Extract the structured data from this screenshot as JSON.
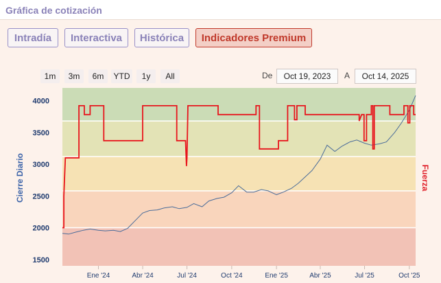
{
  "header": {
    "title": "Gráfica de cotización"
  },
  "tabs": [
    {
      "label": "Intradía",
      "active": false
    },
    {
      "label": "Interactiva",
      "active": false
    },
    {
      "label": "Histórica",
      "active": false
    },
    {
      "label": "Indicadores Premium",
      "active": true
    }
  ],
  "range_selector": {
    "buttons": [
      "1m",
      "3m",
      "6m",
      "YTD",
      "1y",
      "All"
    ],
    "from_label": "De",
    "from_value": "Oct 19, 2023",
    "to_label": "A",
    "to_value": "Oct 14, 2025"
  },
  "colors": {
    "panel_bg": "#fdf2eb",
    "accent": "#c0392b",
    "price_line": "#4a6c9a",
    "strength_line": "#e8141c",
    "zone_green": "#cbdcb6",
    "zone_yellow": "#f6e2b4",
    "zone_orange": "#f9d5bc",
    "zone_red": "#f2c2b6"
  },
  "chart_data": {
    "type": "line",
    "title": "",
    "ylabel": "Cierre Diario",
    "y2label": "Fuerza",
    "ylim": [
      1400,
      4200
    ],
    "yticks": [
      1500,
      2000,
      2500,
      3000,
      3500,
      4000
    ],
    "x_range": [
      "2023-10-19",
      "2025-10-14"
    ],
    "xticks": [
      {
        "label": "Ene '24",
        "date": "2024-01-01"
      },
      {
        "label": "Abr '24",
        "date": "2024-04-01"
      },
      {
        "label": "Jul '24",
        "date": "2024-07-01"
      },
      {
        "label": "Oct '24",
        "date": "2024-10-01"
      },
      {
        "label": "Ene '25",
        "date": "2025-01-01"
      },
      {
        "label": "Abr '25",
        "date": "2025-04-01"
      },
      {
        "label": "Jul '25",
        "date": "2025-07-01"
      },
      {
        "label": "Oct '25",
        "date": "2025-10-01"
      }
    ],
    "zones": [
      {
        "name": "verde",
        "from": 3680,
        "to": 4200,
        "color": "#cbdcb6"
      },
      {
        "name": "verde-amarillo",
        "from": 3120,
        "to": 3680,
        "color": "#e3e3b6"
      },
      {
        "name": "amarillo",
        "from": 2580,
        "to": 3120,
        "color": "#f6e2b4"
      },
      {
        "name": "naranja",
        "from": 2000,
        "to": 2580,
        "color": "#f9d5bc"
      },
      {
        "name": "rojo",
        "from": 1400,
        "to": 2000,
        "color": "#f2c2b6"
      }
    ],
    "series": [
      {
        "name": "Cierre Diario",
        "color": "#4a6c9a",
        "points": [
          [
            "2023-10-19",
            1910
          ],
          [
            "2023-11-01",
            1900
          ],
          [
            "2023-11-15",
            1930
          ],
          [
            "2023-12-01",
            1960
          ],
          [
            "2023-12-15",
            1980
          ],
          [
            "2024-01-01",
            1960
          ],
          [
            "2024-01-15",
            1950
          ],
          [
            "2024-02-01",
            1960
          ],
          [
            "2024-02-15",
            1940
          ],
          [
            "2024-03-01",
            1990
          ],
          [
            "2024-03-15",
            2100
          ],
          [
            "2024-04-01",
            2230
          ],
          [
            "2024-04-15",
            2270
          ],
          [
            "2024-05-01",
            2280
          ],
          [
            "2024-05-15",
            2310
          ],
          [
            "2024-06-01",
            2330
          ],
          [
            "2024-06-15",
            2300
          ],
          [
            "2024-07-01",
            2320
          ],
          [
            "2024-07-15",
            2380
          ],
          [
            "2024-08-01",
            2330
          ],
          [
            "2024-08-15",
            2420
          ],
          [
            "2024-09-01",
            2460
          ],
          [
            "2024-09-15",
            2480
          ],
          [
            "2024-10-01",
            2550
          ],
          [
            "2024-10-15",
            2660
          ],
          [
            "2024-11-01",
            2560
          ],
          [
            "2024-11-15",
            2560
          ],
          [
            "2024-12-01",
            2600
          ],
          [
            "2024-12-15",
            2580
          ],
          [
            "2025-01-01",
            2520
          ],
          [
            "2025-01-15",
            2560
          ],
          [
            "2025-02-01",
            2620
          ],
          [
            "2025-02-15",
            2700
          ],
          [
            "2025-03-01",
            2800
          ],
          [
            "2025-03-15",
            2900
          ],
          [
            "2025-04-01",
            3080
          ],
          [
            "2025-04-15",
            3300
          ],
          [
            "2025-05-01",
            3200
          ],
          [
            "2025-05-15",
            3280
          ],
          [
            "2025-06-01",
            3350
          ],
          [
            "2025-06-15",
            3380
          ],
          [
            "2025-07-01",
            3330
          ],
          [
            "2025-07-15",
            3300
          ],
          [
            "2025-08-01",
            3320
          ],
          [
            "2025-08-15",
            3350
          ],
          [
            "2025-09-01",
            3500
          ],
          [
            "2025-09-15",
            3650
          ],
          [
            "2025-10-01",
            3850
          ],
          [
            "2025-10-14",
            4080
          ]
        ]
      },
      {
        "name": "Fuerza",
        "color": "#e8141c",
        "points": [
          [
            "2023-10-19",
            2000
          ],
          [
            "2023-10-22",
            2000
          ],
          [
            "2023-10-22",
            2500
          ],
          [
            "2023-10-23",
            2700
          ],
          [
            "2023-10-25",
            3100
          ],
          [
            "2023-11-22",
            3100
          ],
          [
            "2023-11-22",
            3920
          ],
          [
            "2023-12-03",
            3920
          ],
          [
            "2023-12-03",
            3780
          ],
          [
            "2023-12-15",
            3780
          ],
          [
            "2023-12-15",
            3920
          ],
          [
            "2024-01-12",
            3920
          ],
          [
            "2024-01-12",
            3370
          ],
          [
            "2024-04-01",
            3370
          ],
          [
            "2024-04-01",
            3920
          ],
          [
            "2024-06-10",
            3920
          ],
          [
            "2024-06-10",
            3370
          ],
          [
            "2024-06-28",
            3370
          ],
          [
            "2024-06-30",
            2970
          ],
          [
            "2024-07-01",
            3100
          ],
          [
            "2024-07-03",
            3920
          ],
          [
            "2024-09-03",
            3920
          ],
          [
            "2024-09-03",
            3780
          ],
          [
            "2024-11-20",
            3780
          ],
          [
            "2024-11-20",
            3920
          ],
          [
            "2024-11-27",
            3920
          ],
          [
            "2024-11-27",
            3240
          ],
          [
            "2025-01-05",
            3240
          ],
          [
            "2025-01-05",
            3370
          ],
          [
            "2025-01-24",
            3370
          ],
          [
            "2025-01-24",
            3920
          ],
          [
            "2025-02-07",
            3920
          ],
          [
            "2025-02-07",
            3700
          ],
          [
            "2025-02-12",
            3700
          ],
          [
            "2025-02-12",
            3920
          ],
          [
            "2025-03-01",
            3920
          ],
          [
            "2025-03-01",
            3780
          ],
          [
            "2025-06-20",
            3780
          ],
          [
            "2025-06-20",
            3680
          ],
          [
            "2025-06-25",
            3780
          ],
          [
            "2025-06-30",
            3780
          ],
          [
            "2025-06-30",
            3370
          ],
          [
            "2025-07-05",
            3370
          ],
          [
            "2025-07-05",
            3780
          ],
          [
            "2025-07-15",
            3780
          ],
          [
            "2025-07-15",
            3920
          ],
          [
            "2025-07-18",
            3920
          ],
          [
            "2025-07-18",
            3240
          ],
          [
            "2025-07-21",
            3240
          ],
          [
            "2025-07-21",
            3920
          ],
          [
            "2025-08-22",
            3920
          ],
          [
            "2025-08-22",
            3780
          ],
          [
            "2025-09-20",
            3780
          ],
          [
            "2025-09-20",
            3920
          ],
          [
            "2025-09-28",
            3920
          ],
          [
            "2025-09-28",
            3650
          ],
          [
            "2025-10-02",
            3650
          ],
          [
            "2025-10-02",
            3920
          ],
          [
            "2025-10-10",
            3920
          ],
          [
            "2025-10-10",
            3780
          ],
          [
            "2025-10-14",
            3780
          ]
        ]
      }
    ]
  }
}
